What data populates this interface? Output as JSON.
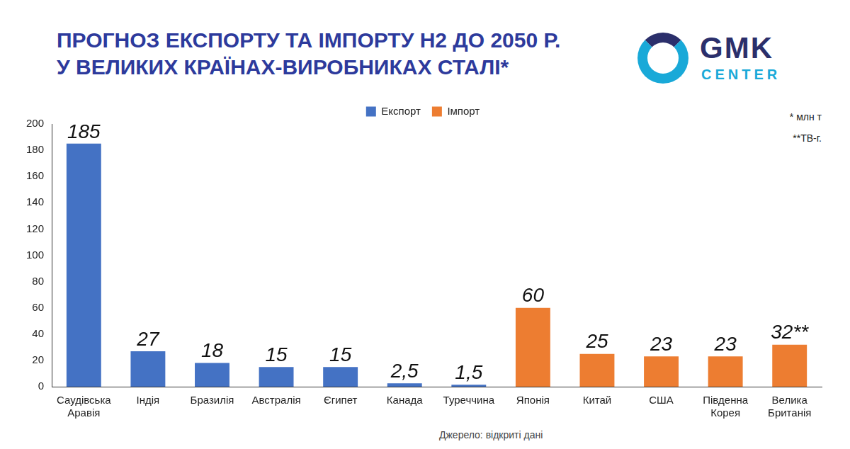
{
  "chart_data": {
    "type": "bar",
    "title": "ПРОГНОЗ ЕКСПОРТУ ТА ІМПОРТУ H2 ДО 2050 Р.\nУ ВЕЛИКИХ КРАЇНАХ-ВИРОБНИКАХ СТАЛІ*",
    "categories": [
      "Саудівська Аравія",
      "Індія",
      "Бразилія",
      "Австралія",
      "Єгипет",
      "Канада",
      "Туреччина",
      "Японія",
      "Китай",
      "США",
      "Південна Корея",
      "Велика Британія"
    ],
    "series": [
      {
        "name": "Експорт",
        "color": "#4472c4",
        "values": [
          185,
          27,
          18,
          15,
          15,
          2.5,
          1.5,
          null,
          null,
          null,
          null,
          null
        ],
        "value_labels": [
          "185",
          "27",
          "18",
          "15",
          "15",
          "2,5",
          "1,5",
          null,
          null,
          null,
          null,
          null
        ]
      },
      {
        "name": "Імпорт",
        "color": "#ed7d31",
        "values": [
          null,
          null,
          null,
          null,
          null,
          null,
          null,
          60,
          25,
          23,
          23,
          32
        ],
        "value_labels": [
          null,
          null,
          null,
          null,
          null,
          null,
          null,
          "60",
          "25",
          "23",
          "23",
          "32**"
        ]
      }
    ],
    "ylim": [
      0,
      200
    ],
    "yticks": [
      0,
      20,
      40,
      60,
      80,
      100,
      120,
      140,
      160,
      180,
      200
    ],
    "grid": false,
    "legend": "top",
    "data_labels": true,
    "annotations": [
      "* млн т",
      "**ТВ-г."
    ],
    "source": "Джерело: відкриті дані",
    "logo": [
      "GMK",
      "CENTER"
    ]
  }
}
